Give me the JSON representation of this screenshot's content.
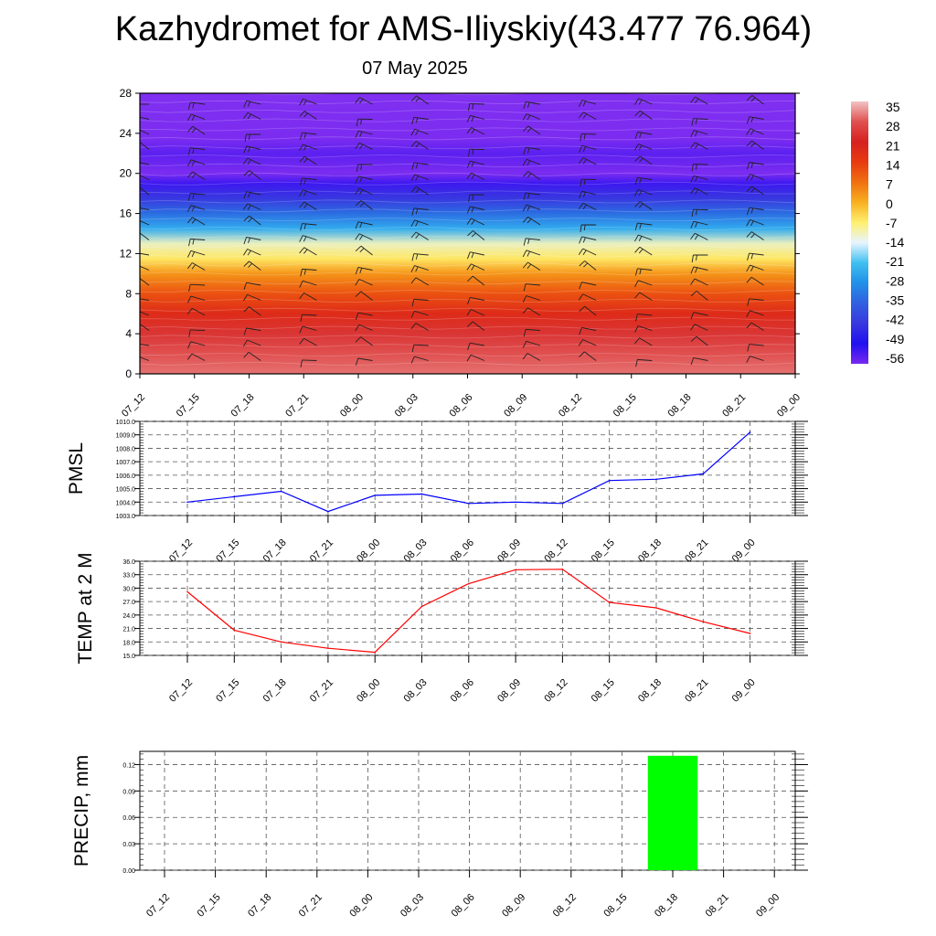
{
  "title": "Kazhydromet for AMS-Iliyskiy(43.477 76.964)",
  "subtitle": "07 May 2025",
  "time_labels": [
    "07_12",
    "07_15",
    "07_18",
    "07_21",
    "08_00",
    "08_03",
    "08_06",
    "08_09",
    "08_12",
    "08_15",
    "08_18",
    "08_21",
    "09_00"
  ],
  "colorbar": {
    "labels": [
      "35",
      "28",
      "21",
      "14",
      "7",
      "0",
      "-7",
      "-14",
      "-21",
      "-28",
      "-35",
      "-42",
      "-49",
      "-56"
    ],
    "colors": [
      "#f2c4c4",
      "#e05050",
      "#d62020",
      "#e83a10",
      "#f07010",
      "#f8b020",
      "#fff070",
      "#e8f4ff",
      "#40c0f0",
      "#2090e8",
      "#3060e0",
      "#3838e0",
      "#2010f0",
      "#7828f0"
    ]
  },
  "chart_data": [
    {
      "type": "heatmap",
      "name": "upper-air-temperature",
      "x": [
        "07_12",
        "07_15",
        "07_18",
        "07_21",
        "08_00",
        "08_03",
        "08_06",
        "08_09",
        "08_12",
        "08_15",
        "08_18",
        "08_21",
        "09_00"
      ],
      "ylim": [
        0,
        28
      ],
      "yticks": [
        0,
        4,
        8,
        12,
        16,
        20,
        24,
        28
      ],
      "zlim": [
        -56,
        35
      ],
      "levels_temperature": [
        {
          "height": 0,
          "value": 30
        },
        {
          "height": 2,
          "value": 28
        },
        {
          "height": 4,
          "value": 24
        },
        {
          "height": 6,
          "value": 18
        },
        {
          "height": 8,
          "value": 11
        },
        {
          "height": 10,
          "value": 3
        },
        {
          "height": 11.5,
          "value": -6
        },
        {
          "height": 13,
          "value": -14
        },
        {
          "height": 14.5,
          "value": -24
        },
        {
          "height": 16,
          "value": -33
        },
        {
          "height": 17.5,
          "value": -42
        },
        {
          "height": 19,
          "value": -52
        },
        {
          "height": 20,
          "value": -58
        },
        {
          "height": 22,
          "value": -54
        },
        {
          "height": 23.5,
          "value": -58
        },
        {
          "height": 28,
          "value": -60
        }
      ],
      "warm_spot": {
        "x_center": "08_12",
        "height_max": 4,
        "peak": 35
      }
    },
    {
      "type": "line",
      "name": "PMSL",
      "ylabel": "PMSL",
      "x": [
        "07_12",
        "07_15",
        "07_18",
        "07_21",
        "08_00",
        "08_03",
        "08_06",
        "08_09",
        "08_12",
        "08_15",
        "08_18",
        "08_21",
        "09_00"
      ],
      "values": [
        1004.0,
        1004.4,
        1004.8,
        1003.3,
        1004.5,
        1004.6,
        1003.9,
        1004.0,
        1003.9,
        1005.6,
        1005.7,
        1006.1,
        1009.2
      ],
      "ylim": [
        1003.0,
        1010.0
      ],
      "ytick_labels": [
        "1003.0",
        "1004.0",
        "1005.0",
        "1006.0",
        "1007.0",
        "1008.0",
        "1009.0",
        "1010.0"
      ],
      "color": "#0000ff"
    },
    {
      "type": "line",
      "name": "TEMP at 2 M",
      "ylabel": "TEMP at 2 M",
      "x": [
        "07_12",
        "07_15",
        "07_18",
        "07_21",
        "08_00",
        "08_03",
        "08_06",
        "08_09",
        "08_12",
        "08_15",
        "08_18",
        "08_21",
        "09_00"
      ],
      "values": [
        29.2,
        20.6,
        18.0,
        16.6,
        15.7,
        25.9,
        31.0,
        34.1,
        34.2,
        26.8,
        25.6,
        22.5,
        19.9
      ],
      "ylim": [
        15.0,
        36.0
      ],
      "ytick_labels": [
        "15.0",
        "18.0",
        "21.0",
        "24.0",
        "27.0",
        "30.0",
        "33.0",
        "36.0"
      ],
      "color": "#ff0000"
    },
    {
      "type": "bar",
      "name": "PRECIP, mm",
      "ylabel": "PRECIP, mm",
      "categories": [
        "07_12",
        "07_15",
        "07_18",
        "07_21",
        "08_00",
        "08_03",
        "08_06",
        "08_09",
        "08_12",
        "08_15",
        "08_18",
        "08_21",
        "09_00"
      ],
      "values": [
        0,
        0,
        0,
        0,
        0,
        0,
        0,
        0,
        0,
        0,
        0.13,
        0,
        0
      ],
      "ylim": [
        0.0,
        0.135
      ],
      "ytick_labels": [
        "0.00",
        "0.03",
        "0.06",
        "0.09",
        "0.12"
      ],
      "color": "#00ff00"
    }
  ]
}
